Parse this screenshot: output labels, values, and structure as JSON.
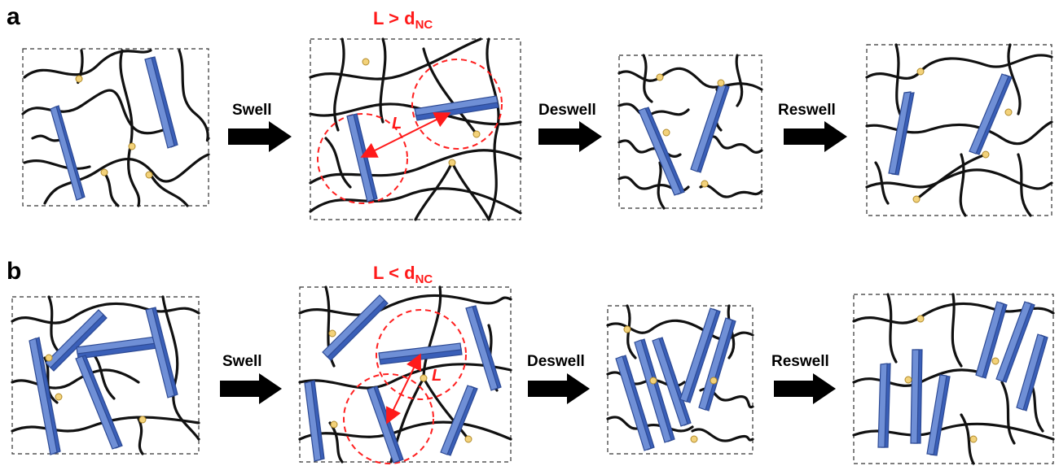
{
  "panels": [
    {
      "letter": "a",
      "condition": {
        "main": "L > d",
        "sub": "NC"
      },
      "arrows": [
        "Swell",
        "Deswell",
        "Reswell"
      ],
      "length_symbol": "L"
    },
    {
      "letter": "b",
      "condition": {
        "main": "L < d",
        "sub": "NC"
      },
      "arrows": [
        "Swell",
        "Deswell",
        "Reswell"
      ],
      "length_symbol": "L"
    }
  ],
  "colors": {
    "nanoclay_face": "#6f8fd6",
    "nanoclay_edge": "#3a5fb8",
    "crosslink": "#f3d27a",
    "polymer_chain": "#111111",
    "annotation": "#ff1a1a"
  }
}
